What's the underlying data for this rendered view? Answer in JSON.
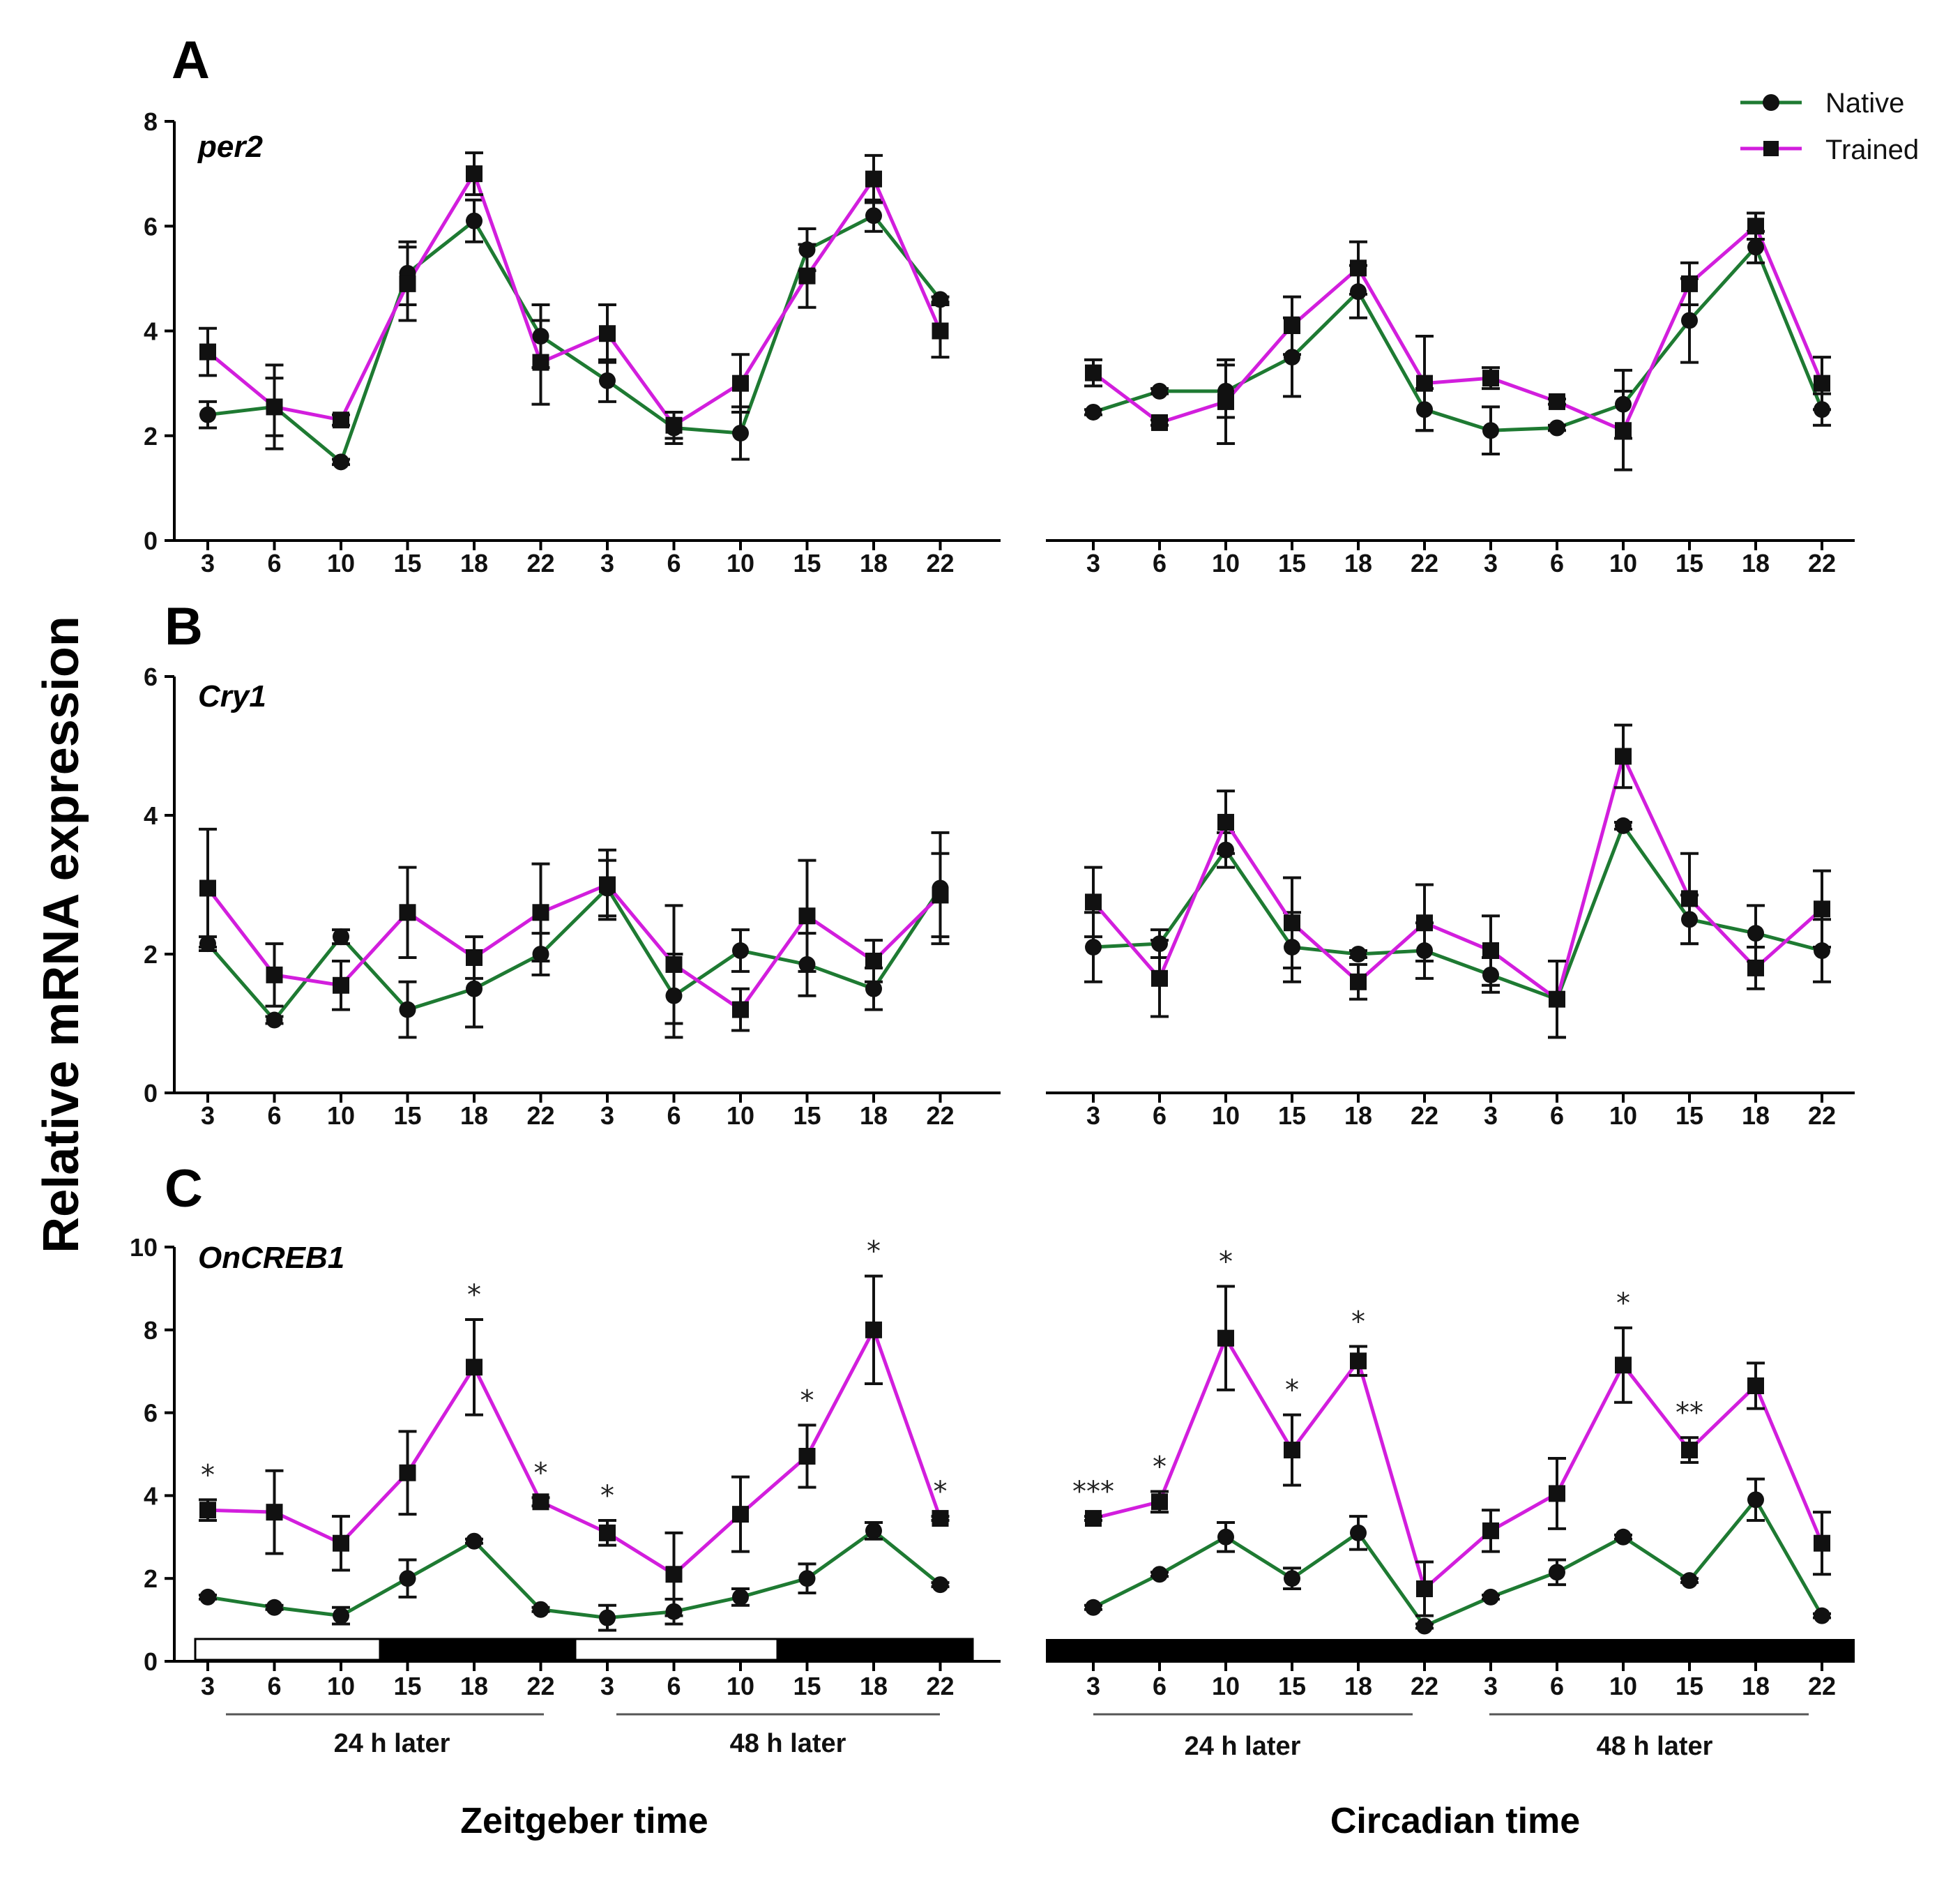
{
  "figure": {
    "y_axis_label": "Relative mRNA expression",
    "x_titles": [
      "Zeitgeber time",
      "Circadian time"
    ],
    "day_labels": [
      "24 h later",
      "48 h later"
    ],
    "colors": {
      "native": "#1e7a32",
      "trained": "#d21edd",
      "marker": "#111111"
    }
  },
  "legend": [
    {
      "name": "Native",
      "marker": "circle"
    },
    {
      "name": "Trained",
      "marker": "square"
    }
  ],
  "chart_data": [
    {
      "panel": "A",
      "gene": "per2",
      "time_type": "Zeitgeber time",
      "type": "line",
      "categories": [
        "3",
        "6",
        "10",
        "15",
        "18",
        "22",
        "3",
        "6",
        "10",
        "15",
        "18",
        "22"
      ],
      "ylim": [
        0,
        8
      ],
      "yticks": [
        0,
        2,
        4,
        6,
        8
      ],
      "series": [
        {
          "name": "Native",
          "values": [
            2.4,
            2.55,
            1.5,
            5.1,
            6.1,
            3.9,
            3.05,
            2.15,
            2.05,
            5.55,
            6.2,
            4.6
          ],
          "err": [
            0.25,
            0.8,
            0.05,
            0.6,
            0.4,
            0.6,
            0.4,
            0.3,
            0.5,
            0.4,
            0.3,
            0.05
          ]
        },
        {
          "name": "Trained",
          "values": [
            3.6,
            2.55,
            2.3,
            4.9,
            7.0,
            3.4,
            3.95,
            2.2,
            3.0,
            5.05,
            6.9,
            4.0
          ],
          "err": [
            0.45,
            0.55,
            0.1,
            0.7,
            0.4,
            0.8,
            0.55,
            0.25,
            0.55,
            0.6,
            0.45,
            0.5
          ]
        }
      ]
    },
    {
      "panel": "A",
      "gene": "per2",
      "time_type": "Circadian time",
      "type": "line",
      "categories": [
        "3",
        "6",
        "10",
        "15",
        "18",
        "22",
        "3",
        "6",
        "10",
        "15",
        "18",
        "22"
      ],
      "ylim": [
        0,
        8
      ],
      "series": [
        {
          "name": "Native",
          "values": [
            2.45,
            2.85,
            2.85,
            3.5,
            4.75,
            2.5,
            2.1,
            2.15,
            2.6,
            4.2,
            5.6,
            2.5
          ],
          "err": [
            0.05,
            0.05,
            0.5,
            0.75,
            0.5,
            0.4,
            0.45,
            0.05,
            0.65,
            0.8,
            0.3,
            0.3
          ]
        },
        {
          "name": "Trained",
          "values": [
            3.2,
            2.25,
            2.65,
            4.1,
            5.2,
            3.0,
            3.1,
            2.65,
            2.1,
            4.9,
            6.0,
            3.0
          ],
          "err": [
            0.25,
            0.05,
            0.8,
            0.55,
            0.5,
            0.9,
            0.2,
            0.05,
            0.75,
            0.4,
            0.25,
            0.5
          ]
        }
      ]
    },
    {
      "panel": "B",
      "gene": "Cry1",
      "time_type": "Zeitgeber time",
      "type": "line",
      "categories": [
        "3",
        "6",
        "10",
        "15",
        "18",
        "22",
        "3",
        "6",
        "10",
        "15",
        "18",
        "22"
      ],
      "ylim": [
        0,
        6
      ],
      "yticks": [
        0,
        2,
        4,
        6
      ],
      "series": [
        {
          "name": "Native",
          "values": [
            2.15,
            1.05,
            2.25,
            1.2,
            1.5,
            2.0,
            2.95,
            1.4,
            2.05,
            1.85,
            1.5,
            2.95
          ],
          "err": [
            0.1,
            0.05,
            0.1,
            0.4,
            0.55,
            0.3,
            0.4,
            0.6,
            0.3,
            0.45,
            0.3,
            0.8
          ]
        },
        {
          "name": "Trained",
          "values": [
            2.95,
            1.7,
            1.55,
            2.6,
            1.95,
            2.6,
            3.0,
            1.85,
            1.2,
            2.55,
            1.9,
            2.85
          ],
          "err": [
            0.85,
            0.45,
            0.35,
            0.65,
            0.3,
            0.7,
            0.5,
            0.85,
            0.3,
            0.8,
            0.3,
            0.6
          ]
        }
      ]
    },
    {
      "panel": "B",
      "gene": "Cry1",
      "time_type": "Circadian time",
      "type": "line",
      "categories": [
        "3",
        "6",
        "10",
        "15",
        "18",
        "22",
        "3",
        "6",
        "10",
        "15",
        "18",
        "22"
      ],
      "ylim": [
        0,
        6
      ],
      "series": [
        {
          "name": "Native",
          "values": [
            2.1,
            2.15,
            3.5,
            2.1,
            2.0,
            2.05,
            1.7,
            1.35,
            3.85,
            2.5,
            2.3,
            2.05
          ],
          "err": [
            0.5,
            0.2,
            0.25,
            0.5,
            0.05,
            0.4,
            0.25,
            0.55,
            0.05,
            0.35,
            0.4,
            0.45
          ]
        },
        {
          "name": "Trained",
          "values": [
            2.75,
            1.65,
            3.9,
            2.45,
            1.6,
            2.45,
            2.05,
            1.35,
            4.85,
            2.8,
            1.8,
            2.65
          ],
          "err": [
            0.5,
            0.55,
            0.45,
            0.65,
            0.25,
            0.55,
            0.5,
            0.55,
            0.45,
            0.65,
            0.3,
            0.55
          ]
        }
      ]
    },
    {
      "panel": "C",
      "gene": "OnCREB1",
      "time_type": "Zeitgeber time",
      "type": "line",
      "categories": [
        "3",
        "6",
        "10",
        "15",
        "18",
        "22",
        "3",
        "6",
        "10",
        "15",
        "18",
        "22"
      ],
      "ylim": [
        0,
        10
      ],
      "yticks": [
        0,
        2,
        4,
        6,
        8,
        10
      ],
      "series": [
        {
          "name": "Native",
          "values": [
            1.55,
            1.3,
            1.1,
            2.0,
            2.9,
            1.25,
            1.05,
            1.2,
            1.55,
            2.0,
            3.15,
            1.85
          ],
          "err": [
            0.05,
            0.05,
            0.2,
            0.45,
            0.05,
            0.05,
            0.3,
            0.3,
            0.2,
            0.35,
            0.2,
            0.05
          ]
        },
        {
          "name": "Trained",
          "values": [
            3.65,
            3.6,
            2.85,
            4.55,
            7.1,
            3.85,
            3.1,
            2.1,
            3.55,
            4.95,
            8.0,
            3.45
          ],
          "err": [
            0.25,
            1.0,
            0.65,
            1.0,
            1.15,
            0.1,
            0.3,
            1.0,
            0.9,
            0.75,
            1.3,
            0.05
          ]
        }
      ],
      "significance": [
        "*",
        "",
        "",
        "",
        "*",
        "*",
        "*",
        "",
        "",
        "*",
        "*",
        "*"
      ],
      "light_dark_bar": [
        "light",
        "dark",
        "light",
        "dark"
      ]
    },
    {
      "panel": "C",
      "gene": "OnCREB1",
      "time_type": "Circadian time",
      "type": "line",
      "categories": [
        "3",
        "6",
        "10",
        "15",
        "18",
        "22",
        "3",
        "6",
        "10",
        "15",
        "18",
        "22"
      ],
      "ylim": [
        0,
        10
      ],
      "series": [
        {
          "name": "Native",
          "values": [
            1.3,
            2.1,
            3.0,
            2.0,
            3.1,
            0.85,
            1.55,
            2.15,
            3.0,
            1.95,
            3.9,
            1.1
          ],
          "err": [
            0.05,
            0.05,
            0.35,
            0.25,
            0.4,
            0.05,
            0.05,
            0.3,
            0.05,
            0.05,
            0.5,
            0.05
          ]
        },
        {
          "name": "Trained",
          "values": [
            3.45,
            3.85,
            7.8,
            5.1,
            7.25,
            1.75,
            3.15,
            4.05,
            7.15,
            5.1,
            6.65,
            2.85
          ],
          "err": [
            0.05,
            0.25,
            1.25,
            0.85,
            0.35,
            0.65,
            0.5,
            0.85,
            0.9,
            0.3,
            0.55,
            0.75
          ]
        }
      ],
      "significance": [
        "***",
        "*",
        "*",
        "*",
        "*",
        "",
        "",
        "",
        "*",
        "**",
        "",
        ""
      ],
      "light_dark_bar": [
        "dark"
      ]
    }
  ]
}
